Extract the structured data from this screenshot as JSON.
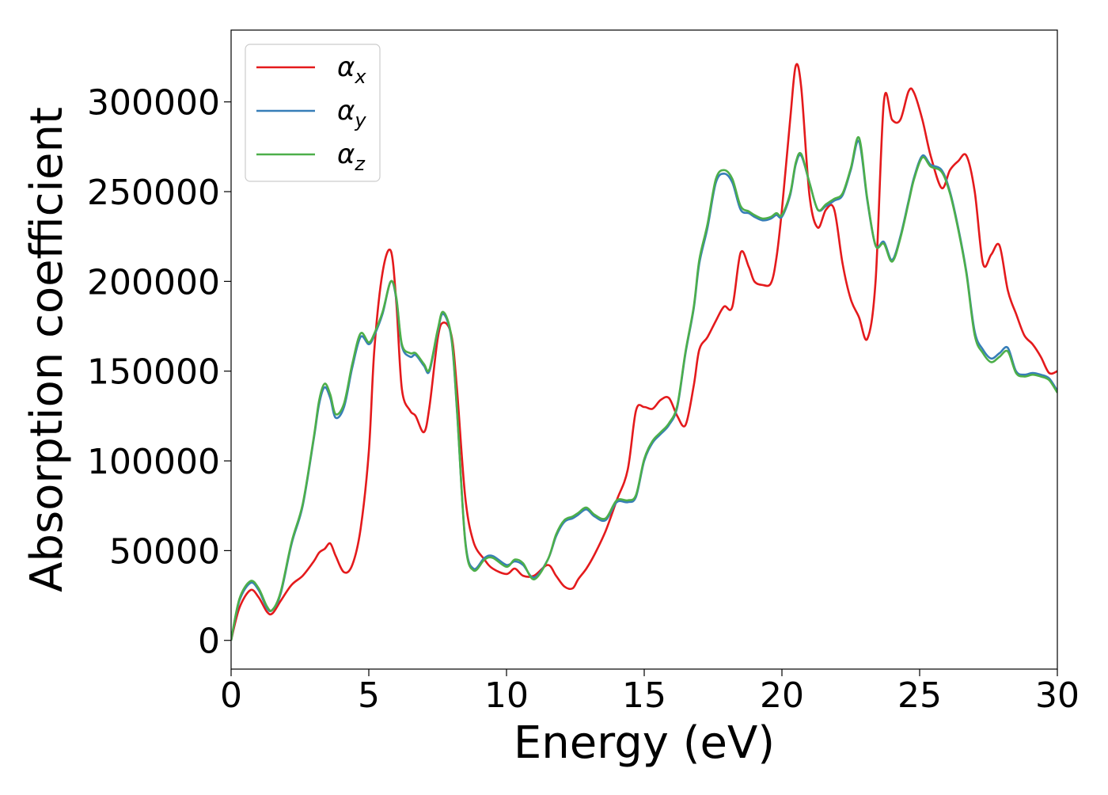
{
  "chart_data": {
    "type": "line",
    "title": "",
    "xlabel": "Energy (eV)",
    "ylabel": "Absorption coefficient",
    "xlim": [
      0,
      30
    ],
    "ylim": [
      -16000,
      340000
    ],
    "xticks": [
      0,
      5,
      10,
      15,
      20,
      25,
      30
    ],
    "yticks": [
      0,
      50000,
      100000,
      150000,
      200000,
      250000,
      300000
    ],
    "grid": false,
    "legend": {
      "position": "top-left"
    },
    "series": [
      {
        "name": "αx",
        "base": "α",
        "sub": "x",
        "color": "#e41a1c",
        "x": [
          0,
          0.3,
          0.7,
          1.0,
          1.3,
          1.5,
          1.8,
          2.2,
          2.6,
          3.0,
          3.2,
          3.4,
          3.6,
          3.8,
          4.1,
          4.4,
          4.7,
          5.0,
          5.2,
          5.5,
          5.8,
          6.0,
          6.2,
          6.5,
          6.7,
          7.0,
          7.2,
          7.5,
          7.7,
          8.0,
          8.2,
          8.5,
          8.8,
          9.2,
          9.5,
          10.0,
          10.3,
          10.6,
          11.0,
          11.5,
          11.8,
          12.1,
          12.4,
          12.6,
          12.9,
          13.2,
          13.6,
          14.0,
          14.4,
          14.7,
          15.0,
          15.3,
          15.6,
          15.9,
          16.2,
          16.5,
          16.8,
          17.0,
          17.3,
          17.6,
          17.9,
          18.2,
          18.5,
          18.8,
          19.0,
          19.3,
          19.6,
          19.8,
          20.0,
          20.3,
          20.5,
          20.7,
          21.0,
          21.3,
          21.6,
          21.9,
          22.2,
          22.5,
          22.8,
          23.1,
          23.4,
          23.7,
          24.0,
          24.3,
          24.6,
          24.8,
          25.1,
          25.4,
          25.8,
          26.1,
          26.4,
          26.7,
          27.0,
          27.3,
          27.6,
          27.9,
          28.2,
          28.5,
          28.8,
          29.1,
          29.4,
          29.7,
          30.0
        ],
        "y": [
          0,
          18000,
          28000,
          24000,
          16000,
          15000,
          22000,
          31000,
          36000,
          44000,
          49000,
          51000,
          54000,
          47000,
          38000,
          42000,
          62000,
          105000,
          162000,
          205000,
          217000,
          188000,
          140000,
          128000,
          125000,
          116000,
          130000,
          168000,
          177000,
          170000,
          140000,
          80000,
          55000,
          45000,
          40000,
          37000,
          40000,
          36000,
          36000,
          42000,
          36000,
          30000,
          29000,
          34000,
          40000,
          48000,
          61000,
          78000,
          95000,
          128000,
          130000,
          129000,
          134000,
          135000,
          125000,
          120000,
          142000,
          162000,
          169000,
          178000,
          186000,
          186000,
          216000,
          208000,
          200000,
          198000,
          199000,
          213000,
          240000,
          290000,
          320000,
          308000,
          248000,
          230000,
          240000,
          240000,
          210000,
          190000,
          180000,
          168000,
          200000,
          300000,
          290000,
          290000,
          306000,
          305000,
          290000,
          270000,
          252000,
          262000,
          267000,
          270000,
          250000,
          210000,
          215000,
          220000,
          195000,
          182000,
          170000,
          165000,
          158000,
          149000,
          150000
        ]
      },
      {
        "name": "αy",
        "base": "α",
        "sub": "y",
        "color": "#377eb8",
        "x": [
          0,
          0.3,
          0.7,
          1.0,
          1.3,
          1.5,
          1.8,
          2.2,
          2.6,
          3.0,
          3.2,
          3.4,
          3.6,
          3.8,
          4.1,
          4.4,
          4.7,
          5.0,
          5.2,
          5.5,
          5.8,
          6.0,
          6.2,
          6.5,
          6.7,
          7.0,
          7.2,
          7.5,
          7.7,
          8.0,
          8.2,
          8.5,
          8.8,
          9.2,
          9.5,
          10.0,
          10.3,
          10.6,
          11.0,
          11.5,
          11.8,
          12.1,
          12.4,
          12.6,
          12.9,
          13.2,
          13.6,
          14.0,
          14.4,
          14.7,
          15.0,
          15.3,
          15.6,
          15.9,
          16.2,
          16.5,
          16.8,
          17.0,
          17.3,
          17.6,
          17.9,
          18.2,
          18.5,
          18.8,
          19.0,
          19.3,
          19.6,
          19.8,
          20.0,
          20.3,
          20.5,
          20.7,
          21.0,
          21.3,
          21.6,
          21.9,
          22.2,
          22.5,
          22.8,
          23.1,
          23.4,
          23.7,
          24.0,
          24.3,
          24.6,
          24.8,
          25.1,
          25.4,
          25.8,
          26.1,
          26.4,
          26.7,
          27.0,
          27.3,
          27.6,
          27.9,
          28.2,
          28.5,
          28.8,
          29.1,
          29.4,
          29.7,
          30.0
        ],
        "y": [
          0,
          22000,
          32000,
          28000,
          18000,
          17000,
          26000,
          54000,
          75000,
          112000,
          132000,
          141000,
          135000,
          124000,
          130000,
          152000,
          169000,
          165000,
          170000,
          182000,
          200000,
          190000,
          164000,
          158000,
          159000,
          153000,
          150000,
          172000,
          182000,
          168000,
          128000,
          56000,
          40000,
          46000,
          47000,
          42000,
          44000,
          42000,
          35000,
          45000,
          58000,
          66000,
          68000,
          70000,
          73000,
          69000,
          67000,
          77000,
          77000,
          80000,
          100000,
          110000,
          115000,
          120000,
          130000,
          160000,
          185000,
          210000,
          230000,
          255000,
          260000,
          255000,
          240000,
          238000,
          236000,
          234000,
          235000,
          237000,
          236000,
          248000,
          265000,
          270000,
          255000,
          240000,
          242000,
          245000,
          248000,
          262000,
          278000,
          245000,
          220000,
          222000,
          212000,
          225000,
          245000,
          258000,
          270000,
          265000,
          262000,
          250000,
          230000,
          205000,
          172000,
          162000,
          157000,
          160000,
          163000,
          150000,
          148000,
          149000,
          148000,
          146000,
          139000
        ]
      },
      {
        "name": "αz",
        "base": "α",
        "sub": "z",
        "color": "#4daf4a",
        "x": [
          0,
          0.3,
          0.7,
          1.0,
          1.3,
          1.5,
          1.8,
          2.2,
          2.6,
          3.0,
          3.2,
          3.4,
          3.6,
          3.8,
          4.1,
          4.4,
          4.7,
          5.0,
          5.2,
          5.5,
          5.8,
          6.0,
          6.2,
          6.5,
          6.7,
          7.0,
          7.2,
          7.5,
          7.7,
          8.0,
          8.2,
          8.5,
          8.8,
          9.2,
          9.5,
          10.0,
          10.3,
          10.6,
          11.0,
          11.5,
          11.8,
          12.1,
          12.4,
          12.6,
          12.9,
          13.2,
          13.6,
          14.0,
          14.4,
          14.7,
          15.0,
          15.3,
          15.6,
          15.9,
          16.2,
          16.5,
          16.8,
          17.0,
          17.3,
          17.6,
          17.9,
          18.2,
          18.5,
          18.8,
          19.0,
          19.3,
          19.6,
          19.8,
          20.0,
          20.3,
          20.5,
          20.7,
          21.0,
          21.3,
          21.6,
          21.9,
          22.2,
          22.5,
          22.8,
          23.1,
          23.4,
          23.7,
          24.0,
          24.3,
          24.6,
          24.8,
          25.1,
          25.4,
          25.8,
          26.1,
          26.4,
          26.7,
          27.0,
          27.3,
          27.6,
          27.9,
          28.2,
          28.5,
          28.8,
          29.1,
          29.4,
          29.7,
          30.0
        ],
        "y": [
          0,
          23000,
          33000,
          29000,
          19000,
          17000,
          27000,
          55000,
          76000,
          113000,
          134000,
          143000,
          137000,
          126000,
          132000,
          154000,
          171000,
          166000,
          171000,
          183000,
          200000,
          191000,
          165000,
          160000,
          160000,
          154000,
          151000,
          173000,
          183000,
          169000,
          129000,
          55000,
          39000,
          45000,
          46000,
          41000,
          45000,
          43000,
          34000,
          45000,
          59000,
          67000,
          69000,
          71000,
          74000,
          70000,
          68000,
          78000,
          78000,
          81000,
          101000,
          111000,
          116000,
          121000,
          131000,
          161000,
          186000,
          212000,
          232000,
          257000,
          262000,
          257000,
          242000,
          239000,
          237000,
          235000,
          236000,
          238000,
          237000,
          249000,
          266000,
          271000,
          255000,
          240000,
          243000,
          246000,
          249000,
          263000,
          280000,
          246000,
          220000,
          221000,
          211000,
          224000,
          244000,
          257000,
          269000,
          264000,
          261000,
          249000,
          229000,
          204000,
          170000,
          160000,
          155000,
          158000,
          161000,
          149000,
          147000,
          148000,
          147000,
          145000,
          138000
        ]
      }
    ]
  }
}
